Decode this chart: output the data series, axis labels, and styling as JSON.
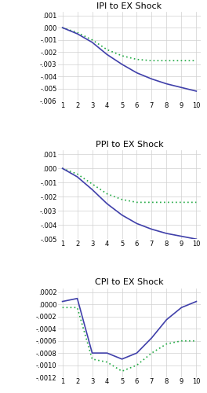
{
  "charts": [
    {
      "title": "IPI to EX Shock",
      "xlim": [
        0.7,
        10.3
      ],
      "ylim": [
        -0.006,
        0.0013
      ],
      "yticks": [
        0.001,
        0.0,
        -0.001,
        -0.002,
        -0.003,
        -0.004,
        -0.005,
        -0.006
      ],
      "ytick_labels": [
        ".001",
        ".000",
        "-.001",
        "-.002",
        "-.003",
        "-.004",
        "-.005",
        "-.006"
      ],
      "solid_x": [
        1,
        2,
        3,
        4,
        5,
        6,
        7,
        8,
        9,
        10
      ],
      "solid_y": [
        0.0,
        -0.0005,
        -0.0012,
        -0.0022,
        -0.003,
        -0.0037,
        -0.0042,
        -0.0046,
        -0.0049,
        -0.0052
      ],
      "dotted_x": [
        1,
        2,
        3,
        4,
        5,
        6,
        7,
        8,
        9,
        10
      ],
      "dotted_y": [
        0.0,
        -0.0004,
        -0.001,
        -0.0018,
        -0.0023,
        -0.0026,
        -0.0027,
        -0.0027,
        -0.0027,
        -0.0027
      ]
    },
    {
      "title": "PPI to EX Shock",
      "xlim": [
        0.7,
        10.3
      ],
      "ylim": [
        -0.005,
        0.0013
      ],
      "yticks": [
        0.001,
        0.0,
        -0.001,
        -0.002,
        -0.003,
        -0.004,
        -0.005
      ],
      "ytick_labels": [
        ".001",
        ".000",
        "-.001",
        "-.002",
        "-.003",
        "-.004",
        "-.005"
      ],
      "solid_x": [
        1,
        2,
        3,
        4,
        5,
        6,
        7,
        8,
        9,
        10
      ],
      "solid_y": [
        0.0,
        -0.0006,
        -0.0015,
        -0.0025,
        -0.0033,
        -0.0039,
        -0.0043,
        -0.0046,
        -0.0048,
        -0.005
      ],
      "dotted_x": [
        1,
        2,
        3,
        4,
        5,
        6,
        7,
        8,
        9,
        10
      ],
      "dotted_y": [
        0.0,
        -0.0004,
        -0.0011,
        -0.0018,
        -0.0022,
        -0.0024,
        -0.0024,
        -0.0024,
        -0.0024,
        -0.0024
      ]
    },
    {
      "title": "CPI to EX Shock",
      "xlim": [
        0.7,
        10.3
      ],
      "ylim": [
        -0.0012,
        0.00027
      ],
      "yticks": [
        0.0002,
        0.0,
        -0.0002,
        -0.0004,
        -0.0006,
        -0.0008,
        -0.001,
        -0.0012
      ],
      "ytick_labels": [
        ".0002",
        ".0000",
        "-.0002",
        "-.0004",
        "-.0006",
        "-.0008",
        "-.0010",
        "-.0012"
      ],
      "solid_x": [
        1,
        2,
        3,
        4,
        5,
        6,
        7,
        8,
        9,
        10
      ],
      "solid_y": [
        5e-05,
        0.0001,
        -0.0008,
        -0.0008,
        -0.0009,
        -0.0008,
        -0.00055,
        -0.00025,
        -5e-05,
        5e-05
      ],
      "dotted_x": [
        1,
        2,
        3,
        4,
        5,
        6,
        7,
        8,
        9,
        10
      ],
      "dotted_y": [
        -5e-05,
        -5e-05,
        -0.0009,
        -0.00095,
        -0.0011,
        -0.001,
        -0.0008,
        -0.00065,
        -0.0006,
        -0.0006
      ]
    }
  ],
  "solid_color": "#4040AA",
  "dotted_color": "#22AA44",
  "background_color": "#ffffff",
  "grid_color": "#d0d0d0",
  "tick_fontsize": 6.0,
  "title_fontsize": 8.0,
  "figsize": [
    2.64,
    5.0
  ],
  "dpi": 100
}
